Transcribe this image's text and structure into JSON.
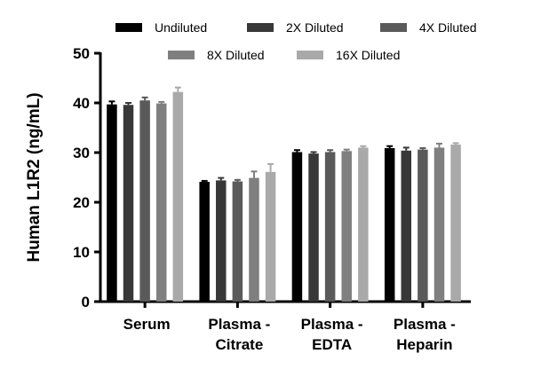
{
  "chart_data": {
    "type": "bar",
    "ylabel": "Human L1R2 (ng/mL)",
    "xlabel": "",
    "ylim": [
      0,
      50
    ],
    "yticks": [
      0,
      10,
      20,
      30,
      40,
      50
    ],
    "grid": false,
    "legend_position": "top",
    "categories": [
      [
        "Serum"
      ],
      [
        "Plasma -",
        "Citrate"
      ],
      [
        "Plasma -",
        "EDTA"
      ],
      [
        "Plasma -",
        "Heparin"
      ]
    ],
    "series": [
      {
        "name": "Undiluted",
        "color": "#000000",
        "values": [
          39.7,
          24.1,
          30.1,
          30.9
        ],
        "errors": [
          0.6,
          0.2,
          0.4,
          0.4
        ]
      },
      {
        "name": "2X Diluted",
        "color": "#383838",
        "values": [
          39.6,
          24.4,
          29.8,
          30.4
        ],
        "errors": [
          0.4,
          0.5,
          0.3,
          0.6
        ]
      },
      {
        "name": "4X Diluted",
        "color": "#5a5a5a",
        "values": [
          40.5,
          24.2,
          30.1,
          30.6
        ],
        "errors": [
          0.6,
          0.3,
          0.4,
          0.3
        ]
      },
      {
        "name": "8X Diluted",
        "color": "#7f7f7f",
        "values": [
          39.9,
          24.9,
          30.3,
          31.0
        ],
        "errors": [
          0.3,
          1.3,
          0.3,
          0.8
        ]
      },
      {
        "name": "16X Diluted",
        "color": "#a9a9a9",
        "values": [
          42.2,
          26.1,
          31.0,
          31.6
        ],
        "errors": [
          0.9,
          1.6,
          0.3,
          0.3
        ]
      }
    ]
  }
}
